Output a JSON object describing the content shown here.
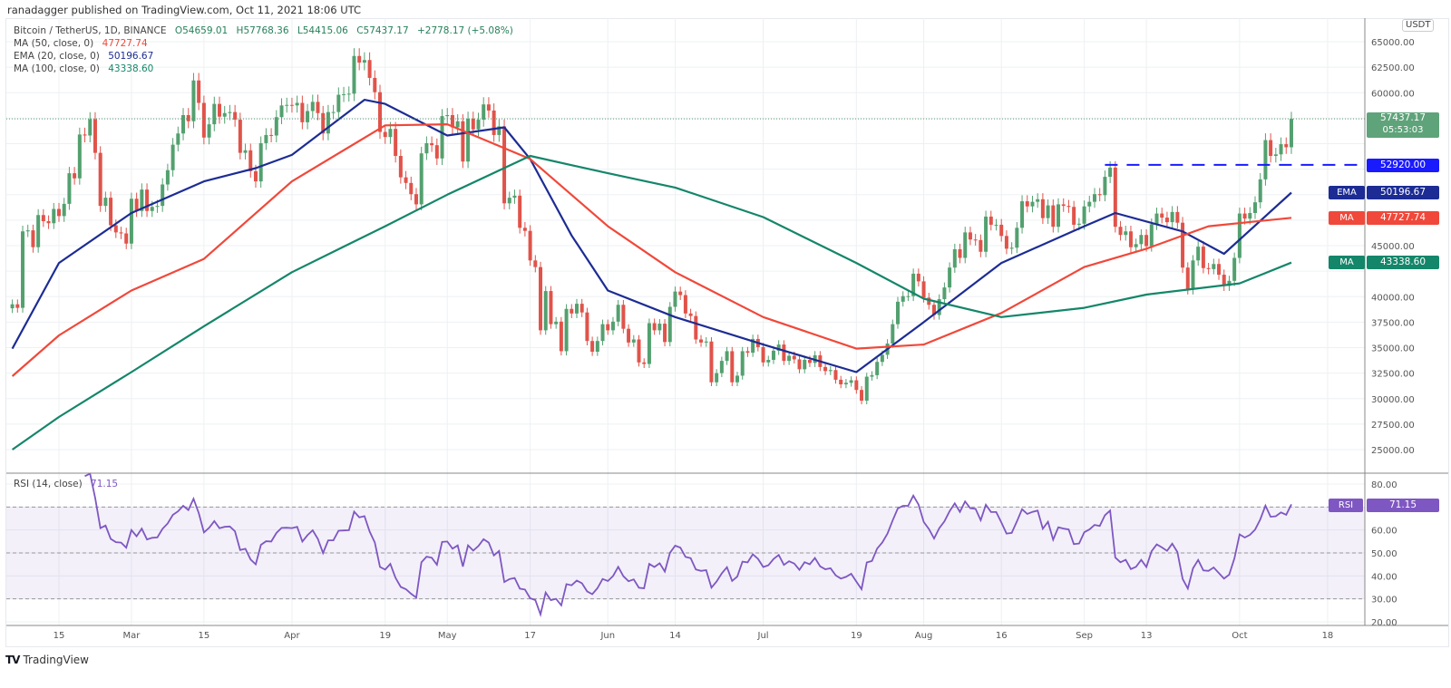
{
  "publisher_line": "ranadagger published on TradingView.com, Oct 11, 2021 18:06 UTC",
  "legend": {
    "symbol": "Bitcoin / TetherUS, 1D, BINANCE",
    "open": "O54659.01",
    "high": "H57768.36",
    "low": "L54415.06",
    "close": "C57437.17",
    "change": "+2778.17 (+5.08%)",
    "ma50_label": "MA (50, close, 0)",
    "ma50_value": "47727.74",
    "ema20_label": "EMA (20, close, 0)",
    "ema20_value": "50196.67",
    "ma100_label": "MA (100, close, 0)",
    "ma100_value": "43338.60",
    "rsi_label": "RSI (14, close)",
    "rsi_value": "71.15"
  },
  "price_axis": {
    "currency": "USDT",
    "last_price": "57437.17",
    "countdown": "05:53:03",
    "level_price": "52920.00",
    "ema_tag": "EMA",
    "ema_price": "50196.67",
    "ma50_tag": "MA",
    "ma50_price": "47727.74",
    "ma100_tag": "MA",
    "ma100_price": "43338.60",
    "rsi_tag": "RSI",
    "rsi_price": "71.15"
  },
  "colors": {
    "up": "#53a06f",
    "down": "#e0534a",
    "ema20": "#1c2c94",
    "ma50": "#f0483a",
    "ma100": "#14866a",
    "rsi": "#7e57c2",
    "level": "#1a1aff",
    "last_price_bg": "#5fa37a"
  },
  "brand": "TradingView",
  "chart_data": [
    {
      "type": "candlestick",
      "title": "Bitcoin / TetherUS, 1D, BINANCE",
      "ylabel": "USDT",
      "ylim": [
        23500,
        66000
      ],
      "y_ticks": [
        25000,
        27500,
        30000,
        32500,
        35000,
        37500,
        40000,
        42500,
        45000,
        47500,
        50000,
        52500,
        55000,
        57500,
        60000,
        62500,
        65000
      ],
      "x_ticks": [
        {
          "label": "15",
          "date": "2021-02-15"
        },
        {
          "label": "Mar",
          "date": "2021-03-01"
        },
        {
          "label": "15",
          "date": "2021-03-15"
        },
        {
          "label": "Apr",
          "date": "2021-04-01"
        },
        {
          "label": "19",
          "date": "2021-04-19"
        },
        {
          "label": "May",
          "date": "2021-05-01"
        },
        {
          "label": "17",
          "date": "2021-05-17"
        },
        {
          "label": "Jun",
          "date": "2021-06-01"
        },
        {
          "label": "14",
          "date": "2021-06-14"
        },
        {
          "label": "Jul",
          "date": "2021-07-01"
        },
        {
          "label": "19",
          "date": "2021-07-19"
        },
        {
          "label": "Aug",
          "date": "2021-08-01"
        },
        {
          "label": "16",
          "date": "2021-08-16"
        },
        {
          "label": "Sep",
          "date": "2021-09-01"
        },
        {
          "label": "13",
          "date": "2021-09-13"
        },
        {
          "label": "Oct",
          "date": "2021-10-01"
        },
        {
          "label": "18",
          "date": "2021-10-18"
        }
      ],
      "grid": true,
      "horizontal_level": {
        "value": 52920,
        "from": "2021-09-05",
        "style": "dashed"
      },
      "daily_closes": [
        {
          "month": "2021-02",
          "first_day": 6,
          "closes": [
            39250,
            38900,
            46400,
            46500,
            44850,
            48000,
            47400,
            47200,
            48600,
            47900,
            49100,
            52100,
            51600,
            55900,
            55800,
            57400,
            54100,
            48900,
            49700,
            47000,
            46300,
            46200,
            45200
          ]
        },
        {
          "month": "2021-03",
          "first_day": 1,
          "closes": [
            49600,
            48400,
            50500,
            48400,
            48800,
            48900,
            51000,
            52400,
            54900,
            56000,
            57800,
            57200,
            61200,
            59000,
            55600,
            56900,
            58900,
            57650,
            58000,
            58100,
            57350,
            54100,
            54350,
            52300,
            51300,
            55050,
            55850,
            55800,
            57600,
            58750,
            58800
          ]
        },
        {
          "month": "2021-04",
          "first_day": 1,
          "closes": [
            58750,
            59000,
            57100,
            58200,
            59100,
            58000,
            56000,
            58100,
            58100,
            59800,
            59850,
            59900,
            63600,
            62950,
            63200,
            61450,
            60050,
            56150,
            55650,
            56450,
            53800,
            51700,
            51150,
            50050,
            49050,
            54050,
            55050,
            54850,
            53550,
            57700
          ]
        },
        {
          "month": "2021-05",
          "first_day": 1,
          "closes": [
            57800,
            56600,
            57200,
            53250,
            57450,
            56400,
            57350,
            58850,
            58250,
            55850,
            56700,
            49150,
            49700,
            49900,
            46750,
            46450,
            43550,
            42900,
            36700,
            40550,
            37300,
            37550,
            34650,
            38800,
            38350,
            39300,
            38450,
            35650,
            34600,
            35650,
            37300
          ]
        },
        {
          "month": "2021-06",
          "first_day": 1,
          "closes": [
            36700,
            37550,
            39200,
            36850,
            35500,
            35800,
            33550,
            33400,
            37400,
            36700,
            37350,
            35550,
            39000,
            40500,
            40150,
            38350,
            38100,
            35800,
            35500,
            35600,
            31600,
            32500,
            33700,
            34650,
            31600,
            32250,
            34650,
            34500,
            35850,
            35050
          ]
        },
        {
          "month": "2021-07",
          "first_day": 1,
          "closes": [
            33550,
            33800,
            34700,
            35300,
            33700,
            34200,
            33850,
            32880,
            33800,
            33500,
            34250,
            33100,
            32700,
            32800,
            31850,
            31400,
            31550,
            31800,
            30850,
            29800,
            32150,
            32300,
            33600,
            34300,
            35400,
            37300,
            39500,
            40050,
            40050,
            42250,
            41500
          ]
        },
        {
          "month": "2021-08",
          "first_day": 1,
          "closes": [
            39900,
            39200,
            38200,
            39750,
            40900,
            42850,
            44650,
            43800,
            46300,
            45600,
            45550,
            44400,
            47850,
            47050,
            47050,
            45950,
            44700,
            44800,
            46750,
            49350,
            48850,
            49300,
            49550,
            47700,
            48950,
            46850,
            49050,
            48900,
            48800,
            47050,
            47150
          ]
        },
        {
          "month": "2021-09",
          "first_day": 1,
          "closes": [
            48850,
            49300,
            50050,
            49950,
            51750,
            52650,
            46850,
            46050,
            46400,
            44850,
            45150,
            46050,
            44950,
            47100,
            48150,
            47750,
            47300,
            48300,
            47250,
            42850,
            40700,
            43550,
            44900,
            42800,
            42700,
            43200,
            42150,
            41050,
            41550,
            43800
          ]
        },
        {
          "month": "2021-10",
          "first_day": 1,
          "closes": [
            48150,
            47650,
            48200,
            49250,
            51500,
            55350,
            53800,
            53950,
            54950,
            54650,
            57437.17
          ]
        }
      ],
      "series": [
        {
          "name": "EMA (20, close, 0)",
          "points": [
            [
              "2021-02-06",
              34900
            ],
            [
              "2021-02-15",
              43300
            ],
            [
              "2021-03-01",
              48200
            ],
            [
              "2021-03-15",
              51300
            ],
            [
              "2021-03-25",
              52600
            ],
            [
              "2021-04-01",
              53900
            ],
            [
              "2021-04-15",
              59300
            ],
            [
              "2021-04-19",
              58900
            ],
            [
              "2021-05-01",
              55800
            ],
            [
              "2021-05-12",
              56600
            ],
            [
              "2021-05-17",
              53500
            ],
            [
              "2021-05-25",
              46000
            ],
            [
              "2021-06-01",
              40600
            ],
            [
              "2021-06-14",
              38000
            ],
            [
              "2021-07-01",
              35300
            ],
            [
              "2021-07-19",
              32600
            ],
            [
              "2021-08-01",
              37500
            ],
            [
              "2021-08-16",
              43300
            ],
            [
              "2021-09-01",
              46900
            ],
            [
              "2021-09-07",
              48200
            ],
            [
              "2021-09-20",
              46400
            ],
            [
              "2021-09-28",
              44200
            ],
            [
              "2021-10-11",
              50196.67
            ]
          ]
        },
        {
          "name": "MA (50, close, 0)",
          "points": [
            [
              "2021-02-06",
              32200
            ],
            [
              "2021-02-15",
              36200
            ],
            [
              "2021-03-01",
              40600
            ],
            [
              "2021-03-15",
              43700
            ],
            [
              "2021-04-01",
              51300
            ],
            [
              "2021-04-19",
              56800
            ],
            [
              "2021-05-01",
              56900
            ],
            [
              "2021-05-17",
              53500
            ],
            [
              "2021-06-01",
              46900
            ],
            [
              "2021-06-14",
              42400
            ],
            [
              "2021-07-01",
              38000
            ],
            [
              "2021-07-19",
              34900
            ],
            [
              "2021-08-01",
              35300
            ],
            [
              "2021-08-16",
              38400
            ],
            [
              "2021-09-01",
              42900
            ],
            [
              "2021-09-13",
              44700
            ],
            [
              "2021-09-25",
              46900
            ],
            [
              "2021-10-11",
              47727.74
            ]
          ]
        },
        {
          "name": "MA (100, close, 0)",
          "points": [
            [
              "2021-02-06",
              25000
            ],
            [
              "2021-02-15",
              28200
            ],
            [
              "2021-03-01",
              32600
            ],
            [
              "2021-03-15",
              37100
            ],
            [
              "2021-04-01",
              42400
            ],
            [
              "2021-04-19",
              46900
            ],
            [
              "2021-05-01",
              50000
            ],
            [
              "2021-05-17",
              53800
            ],
            [
              "2021-06-01",
              52100
            ],
            [
              "2021-06-14",
              50700
            ],
            [
              "2021-07-01",
              47800
            ],
            [
              "2021-07-19",
              43300
            ],
            [
              "2021-08-01",
              39800
            ],
            [
              "2021-08-16",
              38000
            ],
            [
              "2021-09-01",
              38900
            ],
            [
              "2021-09-13",
              40200
            ],
            [
              "2021-10-01",
              41300
            ],
            [
              "2021-10-11",
              43338.6
            ]
          ]
        }
      ]
    },
    {
      "type": "line",
      "title": "RSI (14, close)",
      "ylim": [
        15,
        85
      ],
      "y_ticks": [
        20,
        30,
        40,
        50,
        60,
        70,
        80
      ],
      "band": [
        30,
        70
      ],
      "midline": 50,
      "last_value": 71.15
    }
  ]
}
